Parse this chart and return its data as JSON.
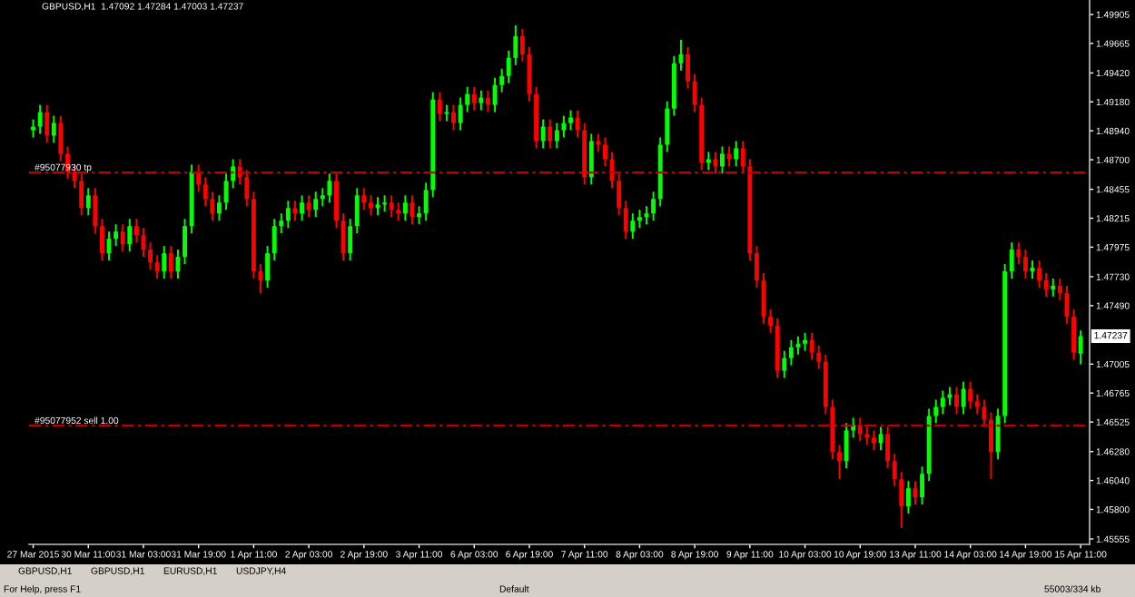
{
  "chart_data": {
    "type": "candlestick",
    "title": "GBPUSD,H1  1.47092 1.47284 1.47003 1.47237",
    "categories": [
      "27 Mar 2015",
      null,
      null,
      null,
      null,
      null,
      null,
      null,
      "30 Mar 11:00",
      null,
      null,
      null,
      null,
      null,
      null,
      null,
      "31 Mar 03:00",
      null,
      null,
      null,
      null,
      null,
      null,
      null,
      "31 Mar 19:00",
      null,
      null,
      null,
      null,
      null,
      null,
      null,
      "1 Apr 11:00",
      null,
      null,
      null,
      null,
      null,
      null,
      null,
      "2 Apr 03:00",
      null,
      null,
      null,
      null,
      null,
      null,
      null,
      "2 Apr 19:00",
      null,
      null,
      null,
      null,
      null,
      null,
      null,
      "3 Apr 11:00",
      null,
      null,
      null,
      null,
      null,
      null,
      null,
      "6 Apr 03:00",
      null,
      null,
      null,
      null,
      null,
      null,
      null,
      "6 Apr 19:00",
      null,
      null,
      null,
      null,
      null,
      null,
      null,
      "7 Apr 11:00",
      null,
      null,
      null,
      null,
      null,
      null,
      null,
      "8 Apr 03:00",
      null,
      null,
      null,
      null,
      null,
      null,
      null,
      "8 Apr 19:00",
      null,
      null,
      null,
      null,
      null,
      null,
      null,
      "9 Apr 11:00",
      null,
      null,
      null,
      null,
      null,
      null,
      null,
      "10 Apr 03:00",
      null,
      null,
      null,
      null,
      null,
      null,
      null,
      "10 Apr 19:00",
      null,
      null,
      null,
      null,
      null,
      null,
      null,
      "13 Apr 11:00",
      null,
      null,
      null,
      null,
      null,
      null,
      null,
      "14 Apr 03:00",
      null,
      null,
      null,
      null,
      null,
      null,
      null,
      "14 Apr 19:00",
      null,
      null,
      null,
      null,
      null,
      null,
      null,
      "15 Apr 11:00"
    ],
    "colors": [
      "#00ff00",
      "#00ff00",
      "#ff0000",
      "#00ff00",
      "#ff0000",
      "#ff0000",
      "#ff0000",
      "#ff0000",
      "#00ff00",
      "#ff0000",
      "#ff0000",
      "#00ff00",
      "#00ff00",
      "#ff0000",
      "#00ff00",
      "#ff0000",
      "#ff0000",
      "#ff0000",
      "#ff0000",
      "#00ff00",
      "#ff0000",
      "#00ff00",
      "#00ff00",
      "#00ff00",
      "#ff0000",
      "#ff0000",
      "#ff0000",
      "#00ff00",
      "#00ff00",
      "#00ff00",
      "#ff0000",
      "#ff0000",
      "#ff0000",
      "#ff0000",
      "#00ff00",
      "#00ff00",
      "#00ff00",
      "#00ff00",
      "#ff0000",
      "#00ff00",
      "#ff0000",
      "#00ff00",
      "#00ff00",
      "#00ff00",
      "#ff0000",
      "#ff0000",
      "#00ff00",
      "#00ff00",
      "#ff0000",
      "#ff0000",
      "#00ff00",
      "#00ff00",
      "#ff0000",
      "#ff0000",
      "#00ff00",
      "#ff0000",
      "#00ff00",
      "#00ff00",
      "#00ff00",
      "#ff0000",
      "#00ff00",
      "#ff0000",
      "#00ff00",
      "#00ff00",
      "#ff0000",
      "#00ff00",
      "#ff0000",
      "#00ff00",
      "#00ff00",
      "#00ff00",
      "#00ff00",
      "#ff0000",
      "#ff0000",
      "#ff0000",
      "#00ff00",
      "#ff0000",
      "#00ff00",
      "#00ff00",
      "#00ff00",
      "#ff0000",
      "#ff0000",
      "#00ff00",
      "#ff0000",
      "#ff0000",
      "#ff0000",
      "#ff0000",
      "#ff0000",
      "#00ff00",
      "#00ff00",
      "#00ff00",
      "#00ff00",
      "#00ff00",
      "#00ff00",
      "#00ff00",
      "#00ff00",
      "#ff0000",
      "#ff0000",
      "#ff0000",
      "#00ff00",
      "#ff0000",
      "#00ff00",
      "#ff0000",
      "#00ff00",
      "#ff0000",
      "#ff0000",
      "#ff0000",
      "#ff0000",
      "#ff0000",
      "#ff0000",
      "#00ff00",
      "#00ff00",
      "#00ff00",
      "#00ff00",
      "#ff0000",
      "#ff0000",
      "#ff0000",
      "#ff0000",
      "#ff0000",
      "#00ff00",
      "#00ff00",
      "#ff0000",
      "#ff0000",
      "#ff0000",
      "#00ff00",
      "#ff0000",
      "#ff0000",
      "#ff0000",
      "#00ff00",
      "#ff0000",
      "#00ff00",
      "#00ff00",
      "#00ff00",
      "#00ff00",
      "#00ff00",
      "#ff0000",
      "#00ff00",
      "#ff0000",
      "#ff0000",
      "#ff0000",
      "#ff0000",
      "#00ff00",
      "#00ff00",
      "#00ff00",
      "#ff0000",
      "#ff0000",
      "#00ff00",
      "#ff0000",
      "#ff0000",
      "#00ff00",
      "#ff0000",
      "#ff0000",
      "#ff0000",
      "#00ff00"
    ],
    "ohlc": [
      [
        1.48945,
        1.49035,
        1.48885,
        1.48975
      ],
      [
        1.48975,
        1.49155,
        1.48915,
        1.49095
      ],
      [
        1.49095,
        1.49155,
        1.4884,
        1.489
      ],
      [
        1.489,
        1.49065,
        1.4884,
        1.49005
      ],
      [
        1.49005,
        1.49065,
        1.4869,
        1.4875
      ],
      [
        1.4875,
        1.4881,
        1.4854,
        1.486
      ],
      [
        1.486,
        1.4866,
        1.48465,
        1.48525
      ],
      [
        1.48525,
        1.48585,
        1.4824,
        1.483
      ],
      [
        1.483,
        1.48465,
        1.4824,
        1.48405
      ],
      [
        1.48405,
        1.48465,
        1.4809,
        1.4815
      ],
      [
        1.4815,
        1.4821,
        1.47865,
        1.47925
      ],
      [
        1.47925,
        1.48105,
        1.47865,
        1.48045
      ],
      [
        1.48045,
        1.48165,
        1.47985,
        1.48105
      ],
      [
        1.48105,
        1.48165,
        1.4794,
        1.48
      ],
      [
        1.48,
        1.4821,
        1.4794,
        1.4815
      ],
      [
        1.4815,
        1.4821,
        1.48015,
        1.48075
      ],
      [
        1.48075,
        1.48135,
        1.47895,
        1.47955
      ],
      [
        1.47955,
        1.48015,
        1.4779,
        1.4785
      ],
      [
        1.4785,
        1.4791,
        1.47715,
        1.47775
      ],
      [
        1.47775,
        1.47985,
        1.47715,
        1.47925
      ],
      [
        1.47925,
        1.47985,
        1.47715,
        1.47775
      ],
      [
        1.47775,
        1.47955,
        1.47715,
        1.47895
      ],
      [
        1.47895,
        1.4821,
        1.47835,
        1.4815
      ],
      [
        1.4815,
        1.4866,
        1.4809,
        1.486
      ],
      [
        1.486,
        1.4866,
        1.48435,
        1.48495
      ],
      [
        1.48495,
        1.48555,
        1.48315,
        1.48375
      ],
      [
        1.48375,
        1.48435,
        1.48195,
        1.48255
      ],
      [
        1.48255,
        1.48405,
        1.48195,
        1.48345
      ],
      [
        1.48345,
        1.48585,
        1.48285,
        1.48525
      ],
      [
        1.48525,
        1.48705,
        1.48465,
        1.48645
      ],
      [
        1.48645,
        1.48705,
        1.48495,
        1.48555
      ],
      [
        1.48555,
        1.48615,
        1.48315,
        1.48375
      ],
      [
        1.48375,
        1.48435,
        1.47715,
        1.47775
      ],
      [
        1.47775,
        1.47835,
        1.47595,
        1.477
      ],
      [
        1.477,
        1.47985,
        1.4764,
        1.47925
      ],
      [
        1.47925,
        1.4821,
        1.47865,
        1.4815
      ],
      [
        1.4815,
        1.48255,
        1.4809,
        1.48195
      ],
      [
        1.48195,
        1.4836,
        1.48135,
        1.483
      ],
      [
        1.483,
        1.4836,
        1.48195,
        1.48255
      ],
      [
        1.48255,
        1.48405,
        1.48195,
        1.48345
      ],
      [
        1.48345,
        1.48405,
        1.48225,
        1.48285
      ],
      [
        1.48285,
        1.48435,
        1.48225,
        1.48375
      ],
      [
        1.48375,
        1.48465,
        1.48315,
        1.48405
      ],
      [
        1.48405,
        1.48585,
        1.48345,
        1.48525
      ],
      [
        1.48525,
        1.48585,
        1.48135,
        1.48195
      ],
      [
        1.48195,
        1.48255,
        1.47865,
        1.47925
      ],
      [
        1.47925,
        1.4821,
        1.47865,
        1.4815
      ],
      [
        1.4815,
        1.48465,
        1.4809,
        1.48405
      ],
      [
        1.48405,
        1.48465,
        1.48285,
        1.48345
      ],
      [
        1.48345,
        1.48405,
        1.4824,
        1.483
      ],
      [
        1.483,
        1.4839,
        1.4824,
        1.4833
      ],
      [
        1.4833,
        1.48405,
        1.4827,
        1.48345
      ],
      [
        1.48345,
        1.48405,
        1.48225,
        1.48285
      ],
      [
        1.48285,
        1.48345,
        1.48195,
        1.48255
      ],
      [
        1.48255,
        1.48405,
        1.48195,
        1.48345
      ],
      [
        1.48345,
        1.48405,
        1.48165,
        1.48225
      ],
      [
        1.48225,
        1.48315,
        1.48165,
        1.48255
      ],
      [
        1.48255,
        1.4851,
        1.48195,
        1.4845
      ],
      [
        1.4845,
        1.4926,
        1.4839,
        1.492
      ],
      [
        1.492,
        1.4926,
        1.4902,
        1.4908
      ],
      [
        1.4908,
        1.49155,
        1.4902,
        1.49095
      ],
      [
        1.49095,
        1.49155,
        1.48945,
        1.49005
      ],
      [
        1.49005,
        1.49215,
        1.48945,
        1.49155
      ],
      [
        1.49155,
        1.49305,
        1.49095,
        1.49245
      ],
      [
        1.49245,
        1.49305,
        1.4911,
        1.4917
      ],
      [
        1.4917,
        1.49275,
        1.4911,
        1.49215
      ],
      [
        1.49215,
        1.49275,
        1.49095,
        1.49155
      ],
      [
        1.49155,
        1.4938,
        1.49095,
        1.4932
      ],
      [
        1.4932,
        1.49455,
        1.4926,
        1.49395
      ],
      [
        1.49395,
        1.49605,
        1.49335,
        1.49545
      ],
      [
        1.49545,
        1.49815,
        1.49485,
        1.49725
      ],
      [
        1.49725,
        1.49785,
        1.49515,
        1.49575
      ],
      [
        1.49575,
        1.49635,
        1.49185,
        1.49245
      ],
      [
        1.49245,
        1.49305,
        1.48795,
        1.48855
      ],
      [
        1.48855,
        1.49035,
        1.48795,
        1.48975
      ],
      [
        1.48975,
        1.49035,
        1.48795,
        1.48855
      ],
      [
        1.48855,
        1.49005,
        1.48795,
        1.48945
      ],
      [
        1.48945,
        1.49065,
        1.48885,
        1.49005
      ],
      [
        1.49005,
        1.4911,
        1.48945,
        1.4905
      ],
      [
        1.4905,
        1.4911,
        1.48885,
        1.48945
      ],
      [
        1.48945,
        1.49005,
        1.48495,
        1.48555
      ],
      [
        1.48555,
        1.48915,
        1.48495,
        1.48855
      ],
      [
        1.48855,
        1.48915,
        1.48765,
        1.48825
      ],
      [
        1.48825,
        1.48885,
        1.48645,
        1.48705
      ],
      [
        1.48705,
        1.48765,
        1.48465,
        1.48525
      ],
      [
        1.48525,
        1.48585,
        1.4824,
        1.483
      ],
      [
        1.483,
        1.4836,
        1.48045,
        1.48105
      ],
      [
        1.48105,
        1.48255,
        1.48045,
        1.48195
      ],
      [
        1.48195,
        1.48285,
        1.48135,
        1.48225
      ],
      [
        1.48225,
        1.48315,
        1.48165,
        1.48255
      ],
      [
        1.48255,
        1.48435,
        1.48195,
        1.48375
      ],
      [
        1.48375,
        1.48885,
        1.48315,
        1.48825
      ],
      [
        1.48825,
        1.49185,
        1.48765,
        1.49125
      ],
      [
        1.49125,
        1.4956,
        1.49065,
        1.495
      ],
      [
        1.495,
        1.49695,
        1.4944,
        1.49575
      ],
      [
        1.49575,
        1.49635,
        1.4929,
        1.4935
      ],
      [
        1.4935,
        1.4941,
        1.49095,
        1.49155
      ],
      [
        1.49155,
        1.49215,
        1.48615,
        1.48675
      ],
      [
        1.48675,
        1.48765,
        1.48615,
        1.48705
      ],
      [
        1.48705,
        1.48765,
        1.48585,
        1.48645
      ],
      [
        1.48645,
        1.4881,
        1.48585,
        1.4875
      ],
      [
        1.4875,
        1.4881,
        1.48645,
        1.48705
      ],
      [
        1.48705,
        1.48855,
        1.48645,
        1.48795
      ],
      [
        1.48795,
        1.48855,
        1.48585,
        1.48645
      ],
      [
        1.48645,
        1.48705,
        1.47865,
        1.47925
      ],
      [
        1.47925,
        1.47985,
        1.4764,
        1.477
      ],
      [
        1.477,
        1.4776,
        1.4734,
        1.474
      ],
      [
        1.474,
        1.4746,
        1.47265,
        1.47325
      ],
      [
        1.47325,
        1.47385,
        1.4689,
        1.4695
      ],
      [
        1.4695,
        1.47115,
        1.4689,
        1.47055
      ],
      [
        1.47055,
        1.47205,
        1.46995,
        1.47145
      ],
      [
        1.47145,
        1.47235,
        1.47085,
        1.47175
      ],
      [
        1.47175,
        1.47265,
        1.47115,
        1.47205
      ],
      [
        1.47205,
        1.47265,
        1.4704,
        1.471
      ],
      [
        1.471,
        1.4716,
        1.46965,
        1.47025
      ],
      [
        1.47025,
        1.47085,
        1.4659,
        1.4665
      ],
      [
        1.4665,
        1.4671,
        1.46215,
        1.46275
      ],
      [
        1.46275,
        1.46335,
        1.4605,
        1.462
      ],
      [
        1.462,
        1.46515,
        1.4614,
        1.46455
      ],
      [
        1.46455,
        1.4656,
        1.46395,
        1.465
      ],
      [
        1.465,
        1.4656,
        1.46365,
        1.46425
      ],
      [
        1.46425,
        1.46485,
        1.46335,
        1.46395
      ],
      [
        1.46395,
        1.46455,
        1.4629,
        1.4635
      ],
      [
        1.4635,
        1.46485,
        1.4629,
        1.46425
      ],
      [
        1.46425,
        1.46485,
        1.4614,
        1.462
      ],
      [
        1.462,
        1.4626,
        1.4599,
        1.4605
      ],
      [
        1.4605,
        1.4611,
        1.45645,
        1.45825
      ],
      [
        1.45825,
        1.46035,
        1.45765,
        1.45975
      ],
      [
        1.45975,
        1.46035,
        1.4584,
        1.459
      ],
      [
        1.459,
        1.46155,
        1.4584,
        1.46095
      ],
      [
        1.46095,
        1.46635,
        1.46035,
        1.46575
      ],
      [
        1.46575,
        1.4671,
        1.46515,
        1.4665
      ],
      [
        1.4665,
        1.46785,
        1.4659,
        1.46725
      ],
      [
        1.46725,
        1.46815,
        1.46665,
        1.46755
      ],
      [
        1.46755,
        1.46815,
        1.4659,
        1.4665
      ],
      [
        1.4665,
        1.4686,
        1.4659,
        1.468
      ],
      [
        1.468,
        1.4686,
        1.46635,
        1.46695
      ],
      [
        1.46695,
        1.46755,
        1.4659,
        1.4665
      ],
      [
        1.4665,
        1.4671,
        1.46485,
        1.46545
      ],
      [
        1.46545,
        1.46605,
        1.4605,
        1.46275
      ],
      [
        1.46275,
        1.46635,
        1.46215,
        1.46575
      ],
      [
        1.46575,
        1.47835,
        1.46515,
        1.47775
      ],
      [
        1.47775,
        1.48015,
        1.47715,
        1.47955
      ],
      [
        1.47955,
        1.48015,
        1.47835,
        1.47895
      ],
      [
        1.47895,
        1.47955,
        1.47715,
        1.47775
      ],
      [
        1.47775,
        1.47865,
        1.47715,
        1.47805
      ],
      [
        1.47805,
        1.47865,
        1.4764,
        1.477
      ],
      [
        1.477,
        1.4776,
        1.47565,
        1.47625
      ],
      [
        1.47625,
        1.47715,
        1.47565,
        1.47655
      ],
      [
        1.47655,
        1.47715,
        1.47535,
        1.47595
      ],
      [
        1.47595,
        1.47655,
        1.4734,
        1.474
      ],
      [
        1.474,
        1.4746,
        1.4704,
        1.471
      ],
      [
        1.47092,
        1.47284,
        1.47003,
        1.47237
      ]
    ],
    "ylim": [
      1.4551,
      1.50025
    ],
    "yticks": [
      {
        "value": 1.49905,
        "label": "1.49905"
      },
      {
        "value": 1.49665,
        "label": "1.49665"
      },
      {
        "value": 1.4942,
        "label": "1.49420"
      },
      {
        "value": 1.4918,
        "label": "1.49180"
      },
      {
        "value": 1.4894,
        "label": "1.48940"
      },
      {
        "value": 1.487,
        "label": "1.48700"
      },
      {
        "value": 1.48455,
        "label": "1.48455"
      },
      {
        "value": 1.48215,
        "label": "1.48215"
      },
      {
        "value": 1.47975,
        "label": "1.47975"
      },
      {
        "value": 1.4773,
        "label": "1.47730"
      },
      {
        "value": 1.4749,
        "label": "1.47490"
      },
      {
        "value": 1.47005,
        "label": "1.47005"
      },
      {
        "value": 1.46765,
        "label": "1.46765"
      },
      {
        "value": 1.46525,
        "label": "1.46525"
      },
      {
        "value": 1.4628,
        "label": "1.46280"
      },
      {
        "value": 1.4604,
        "label": "1.46040"
      },
      {
        "value": 1.458,
        "label": "1.45800"
      },
      {
        "value": 1.45555,
        "label": "1.45555"
      }
    ],
    "ref_lines": [
      {
        "axis": "y",
        "value": 1.48595,
        "label": "#95077930 tp",
        "color": "#c00000",
        "line_style": "dashed"
      },
      {
        "axis": "y",
        "value": 1.46495,
        "label": "#95077952 sell 1.00",
        "color": "#c00000",
        "line_style": "dashed"
      }
    ],
    "annotations": [
      "1.47237",
      "GBPUSD,H1",
      "GBPUSD,H1",
      "EURUSD,H1",
      "USDJPY,H4",
      "For Help, press F1",
      "Default",
      "55003/334 kb"
    ],
    "grid": false,
    "legend": false
  }
}
